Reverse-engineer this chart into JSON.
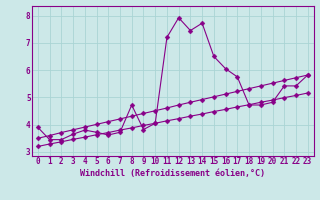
{
  "xlabel": "Windchill (Refroidissement éolien,°C)",
  "bg_color": "#cce8e8",
  "line_color": "#880088",
  "xlim": [
    -0.5,
    23.5
  ],
  "ylim": [
    2.85,
    8.35
  ],
  "xticks": [
    0,
    1,
    2,
    3,
    4,
    5,
    6,
    7,
    8,
    9,
    10,
    11,
    12,
    13,
    14,
    15,
    16,
    17,
    18,
    19,
    20,
    21,
    22,
    23
  ],
  "yticks": [
    3,
    4,
    5,
    6,
    7,
    8
  ],
  "line1_x": [
    0,
    1,
    2,
    3,
    4,
    5,
    6,
    7,
    8,
    9,
    10,
    11,
    12,
    13,
    14,
    15,
    16,
    17,
    18,
    19,
    20,
    21,
    22,
    23
  ],
  "line1_y": [
    3.9,
    3.45,
    3.45,
    3.65,
    3.8,
    3.72,
    3.62,
    3.72,
    4.72,
    3.82,
    4.05,
    7.2,
    7.92,
    7.45,
    7.72,
    6.5,
    6.05,
    5.75,
    4.72,
    4.72,
    4.82,
    5.42,
    5.42,
    5.82
  ],
  "line2_x": [
    0,
    1,
    2,
    3,
    4,
    5,
    6,
    7,
    8,
    9,
    10,
    11,
    12,
    13,
    14,
    15,
    16,
    17,
    18,
    19,
    20,
    21,
    22,
    23
  ],
  "line2_y": [
    3.5,
    3.6,
    3.71,
    3.81,
    3.91,
    4.01,
    4.11,
    4.21,
    4.31,
    4.41,
    4.51,
    4.61,
    4.72,
    4.82,
    4.92,
    5.02,
    5.12,
    5.22,
    5.32,
    5.42,
    5.52,
    5.62,
    5.72,
    5.82
  ],
  "line3_x": [
    0,
    1,
    2,
    3,
    4,
    5,
    6,
    7,
    8,
    9,
    10,
    11,
    12,
    13,
    14,
    15,
    16,
    17,
    18,
    19,
    20,
    21,
    22,
    23
  ],
  "line3_y": [
    3.2,
    3.29,
    3.37,
    3.46,
    3.54,
    3.63,
    3.71,
    3.8,
    3.88,
    3.97,
    4.05,
    4.14,
    4.22,
    4.31,
    4.39,
    4.48,
    4.56,
    4.65,
    4.73,
    4.82,
    4.9,
    4.99,
    5.07,
    5.16
  ],
  "grid_color": "#aad4d4",
  "tick_fontsize": 5.5,
  "xlabel_fontsize": 6.0
}
